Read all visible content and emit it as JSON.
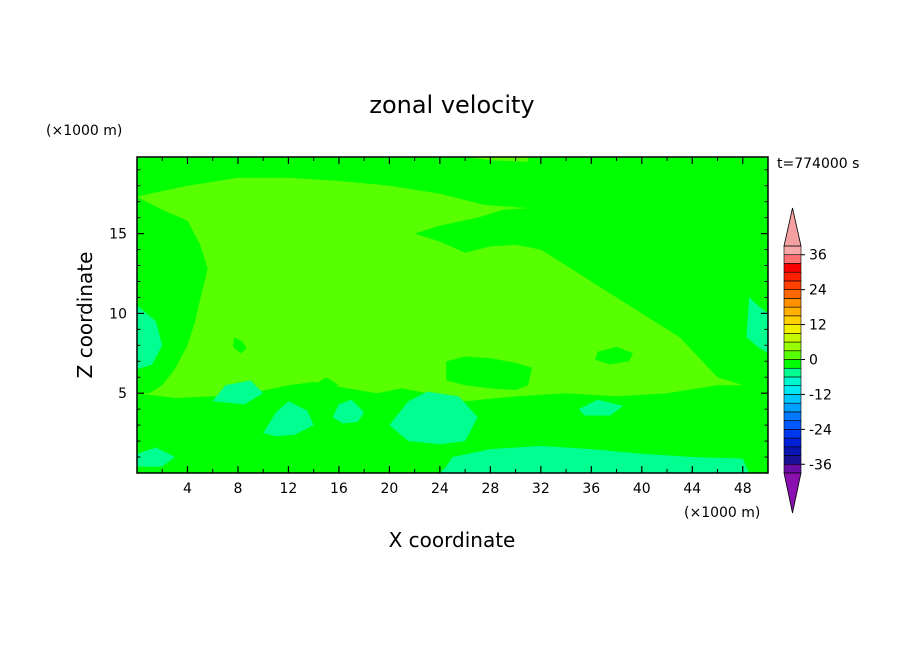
{
  "chart_data": {
    "type": "heatmap",
    "title": "zonal velocity",
    "xlabel": "X coordinate",
    "ylabel": "Z coordinate",
    "x_unit": "(×1000 m)",
    "y_unit": "(×1000 m)",
    "time_label": "t=774000 s",
    "xlim": [
      0,
      50
    ],
    "ylim": [
      0,
      19.8
    ],
    "x_ticks": [
      4,
      8,
      12,
      16,
      20,
      24,
      28,
      32,
      36,
      40,
      44,
      48
    ],
    "y_ticks": [
      5,
      10,
      15
    ],
    "field": {
      "background_level": 0,
      "regions": [
        {
          "level": -3,
          "points": [
            [
              0,
              19.8
            ],
            [
              26,
              19.8
            ],
            [
              28,
              19.6
            ],
            [
              31,
              19.5
            ],
            [
              31,
              19.8
            ],
            [
              50,
              19.8
            ],
            [
              50,
              5
            ],
            [
              46,
              6
            ],
            [
              43,
              8.5
            ],
            [
              40,
              10
            ],
            [
              37,
              11.5
            ],
            [
              34,
              13
            ],
            [
              32,
              14
            ],
            [
              30,
              14.3
            ],
            [
              28,
              14.2
            ],
            [
              26,
              13.8
            ],
            [
              24,
              14.5
            ],
            [
              22,
              15
            ],
            [
              24,
              15.5
            ],
            [
              27,
              16
            ],
            [
              29,
              16.5
            ],
            [
              31,
              16.6
            ],
            [
              27.5,
              16.8
            ],
            [
              24,
              17.5
            ],
            [
              20,
              18
            ],
            [
              16,
              18.3
            ],
            [
              12,
              18.5
            ],
            [
              8,
              18.5
            ],
            [
              4,
              18
            ],
            [
              1,
              17.5
            ],
            [
              0,
              17.3
            ]
          ]
        },
        {
          "level": -3,
          "points": [
            [
              0,
              17.3
            ],
            [
              2,
              16.5
            ],
            [
              4,
              15.8
            ],
            [
              5,
              14.3
            ],
            [
              5.6,
              12.8
            ],
            [
              5.1,
              11.2
            ],
            [
              4.6,
              9.5
            ],
            [
              4,
              8
            ],
            [
              3,
              6.5
            ],
            [
              2,
              5.5
            ],
            [
              1,
              5
            ],
            [
              0,
              5
            ]
          ]
        },
        {
          "level": -3,
          "points": [
            [
              0,
              5
            ],
            [
              3,
              4.7
            ],
            [
              6,
              4.8
            ],
            [
              9,
              5
            ],
            [
              12,
              5.5
            ],
            [
              14,
              5.7
            ],
            [
              16,
              5.4
            ],
            [
              19,
              5
            ],
            [
              21,
              5.3
            ],
            [
              23,
              5
            ],
            [
              26,
              4.5
            ],
            [
              30,
              4.8
            ],
            [
              34,
              5
            ],
            [
              38,
              4.8
            ],
            [
              42,
              5
            ],
            [
              46,
              5.5
            ],
            [
              50,
              5.5
            ],
            [
              50,
              0
            ],
            [
              0,
              0
            ]
          ]
        },
        {
          "level": -1,
          "points": [
            [
              0,
              2.6
            ],
            [
              1.2,
              2.1
            ],
            [
              2.5,
              1.6
            ],
            [
              3,
              1
            ],
            [
              2.3,
              0.3
            ],
            [
              1,
              0.2
            ],
            [
              0,
              0.5
            ]
          ]
        },
        {
          "level": -1,
          "points": [
            [
              9.2,
              0
            ],
            [
              10,
              0.7
            ],
            [
              12.5,
              0.8
            ],
            [
              12.8,
              0
            ]
          ]
        },
        {
          "level": -1,
          "points": [
            [
              19.5,
              0
            ],
            [
              20.5,
              0.7
            ],
            [
              23,
              0.9
            ],
            [
              25,
              0.6
            ],
            [
              25.5,
              0
            ]
          ]
        },
        {
          "level": -1,
          "points": [
            [
              34,
              2.3
            ],
            [
              36,
              2.7
            ],
            [
              38,
              2.6
            ],
            [
              38.5,
              2.2
            ],
            [
              36.5,
              2
            ],
            [
              34.5,
              2
            ]
          ]
        },
        {
          "level": -1,
          "points": [
            [
              38.5,
              2.6
            ],
            [
              40.5,
              2.7
            ],
            [
              42.5,
              2.3
            ],
            [
              41,
              1.9
            ],
            [
              39,
              2.1
            ]
          ]
        },
        {
          "level": -1,
          "points": [
            [
              43,
              2.8
            ],
            [
              45,
              3.3
            ],
            [
              46.5,
              2.8
            ],
            [
              45.5,
              2
            ],
            [
              43.5,
              2.3
            ]
          ]
        },
        {
          "level": -1,
          "points": [
            [
              48,
              2.1
            ],
            [
              49.2,
              2.6
            ],
            [
              50,
              2.4
            ],
            [
              50,
              0.9
            ],
            [
              49,
              0.9
            ],
            [
              48,
              1.3
            ]
          ]
        },
        {
          "level": -1,
          "points": [
            [
              7.7,
              8.5
            ],
            [
              8.4,
              8.2
            ],
            [
              8.7,
              7.8
            ],
            [
              8.2,
              7.5
            ],
            [
              7.6,
              7.9
            ]
          ]
        },
        {
          "level": -1,
          "points": [
            [
              36.5,
              7.6
            ],
            [
              38,
              7.9
            ],
            [
              39.3,
              7.5
            ],
            [
              39,
              7
            ],
            [
              37.5,
              6.8
            ],
            [
              36.3,
              7.1
            ]
          ]
        },
        {
          "level": -1,
          "points": [
            [
              24.5,
              7
            ],
            [
              26,
              7.3
            ],
            [
              28,
              7.2
            ],
            [
              30,
              6.9
            ],
            [
              31.3,
              6.6
            ],
            [
              31,
              5.5
            ],
            [
              30,
              5.2
            ],
            [
              28,
              5.3
            ],
            [
              26,
              5.5
            ],
            [
              24.5,
              5.8
            ]
          ]
        },
        {
          "level": -3,
          "points": [
            [
              14,
              5.5
            ],
            [
              15,
              6
            ],
            [
              16,
              5.5
            ],
            [
              15,
              5.3
            ]
          ]
        },
        {
          "level": -5,
          "points": [
            [
              0,
              10.5
            ],
            [
              1.5,
              9.5
            ],
            [
              2,
              8
            ],
            [
              1.2,
              6.8
            ],
            [
              0,
              6.5
            ]
          ]
        },
        {
          "level": -5,
          "points": [
            [
              6,
              4.5
            ],
            [
              7,
              5.5
            ],
            [
              9,
              5.8
            ],
            [
              10,
              5
            ],
            [
              8.5,
              4.3
            ]
          ]
        },
        {
          "level": -5,
          "points": [
            [
              10,
              2.5
            ],
            [
              11,
              3.8
            ],
            [
              12,
              4.5
            ],
            [
              13.5,
              3.9
            ],
            [
              14,
              3
            ],
            [
              12.5,
              2.4
            ],
            [
              11,
              2.3
            ]
          ]
        },
        {
          "level": -5,
          "points": [
            [
              15.5,
              3.5
            ],
            [
              16,
              4.3
            ],
            [
              17,
              4.6
            ],
            [
              18,
              3.8
            ],
            [
              17.5,
              3.2
            ],
            [
              16.3,
              3.1
            ]
          ]
        },
        {
          "level": -5,
          "points": [
            [
              20,
              3
            ],
            [
              21.5,
              4.5
            ],
            [
              23,
              5.1
            ],
            [
              25.5,
              4.8
            ],
            [
              27,
              3.5
            ],
            [
              26,
              2
            ],
            [
              24,
              1.8
            ],
            [
              21.5,
              2
            ]
          ]
        },
        {
          "level": -5,
          "points": [
            [
              25,
              1
            ],
            [
              28,
              1.5
            ],
            [
              32,
              1.7
            ],
            [
              36,
              1.5
            ],
            [
              40,
              1.2
            ],
            [
              44,
              1
            ],
            [
              48,
              0.9
            ],
            [
              48.5,
              0
            ],
            [
              24,
              0
            ],
            [
              24.5,
              0.4
            ]
          ]
        },
        {
          "level": -5,
          "points": [
            [
              35,
              4
            ],
            [
              36.5,
              4.6
            ],
            [
              38.5,
              4.2
            ],
            [
              37.5,
              3.6
            ],
            [
              35.5,
              3.6
            ]
          ]
        },
        {
          "level": -5,
          "points": [
            [
              48.5,
              11
            ],
            [
              49.2,
              10.5
            ],
            [
              50,
              10
            ],
            [
              50,
              7.5
            ],
            [
              49.2,
              7.9
            ],
            [
              48.3,
              8.5
            ]
          ]
        },
        {
          "level": -5,
          "points": [
            [
              0,
              1.2
            ],
            [
              1.5,
              1.6
            ],
            [
              3,
              1
            ],
            [
              2,
              0.4
            ],
            [
              0,
              0.4
            ]
          ]
        }
      ]
    },
    "colorbar": {
      "levels": [
        -39,
        -36,
        -33,
        -30,
        -27,
        -24,
        -21,
        -18,
        -15,
        -12,
        -9,
        -6,
        -3,
        0,
        3,
        6,
        9,
        12,
        15,
        18,
        21,
        24,
        27,
        30,
        33,
        36,
        39
      ],
      "colors": [
        "#6a0ca8",
        "#1a0e94",
        "#0a14b0",
        "#0020d8",
        "#0038f0",
        "#0058ff",
        "#0078ff",
        "#00a0ff",
        "#00c8ff",
        "#00e8f0",
        "#00f8d0",
        "#00ff90",
        "#00ff00",
        "#58ff00",
        "#98ff00",
        "#c8f800",
        "#f0f000",
        "#ffd000",
        "#ffb000",
        "#ff9000",
        "#ff6800",
        "#ff4000",
        "#ff2000",
        "#f80000",
        "#ff7070",
        "#f8a8a8"
      ],
      "tick_labels": [
        "36",
        "24",
        "12",
        "0",
        "-12",
        "-24",
        "-36"
      ],
      "tick_values": [
        36,
        24,
        12,
        0,
        -12,
        -24,
        -36
      ],
      "under_color": "#8a10b0",
      "over_color": "#f4a0a0"
    }
  }
}
